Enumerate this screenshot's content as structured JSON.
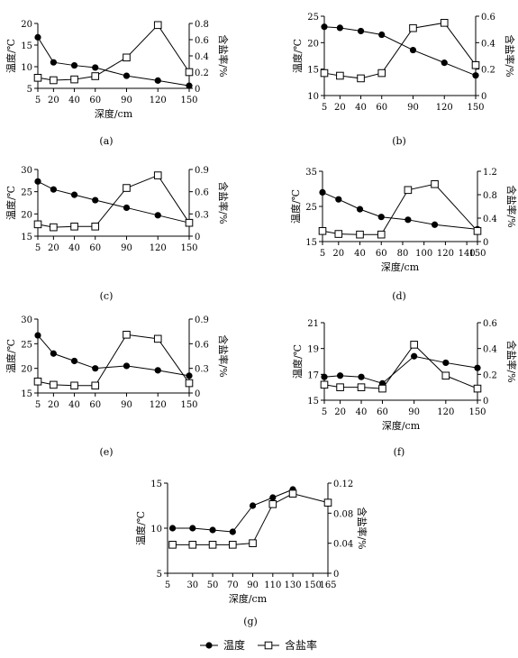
{
  "legend": {
    "temp_label": "温度",
    "salt_label": "含盐率"
  },
  "chart_data": [
    {
      "type": "line",
      "panel_label": "(a)",
      "xlabel": "深度/cm",
      "ylabel_left": "温度/℃",
      "ylabel_right": "含盐率/%",
      "xlim": [
        5,
        150
      ],
      "x_ticks": [
        5,
        20,
        40,
        60,
        90,
        120,
        150
      ],
      "y_left_lim": [
        5,
        20
      ],
      "y_left_ticks": [
        5,
        10,
        15,
        20
      ],
      "y_right_lim": [
        0,
        0.8
      ],
      "y_right_ticks": [
        0,
        0.2,
        0.4,
        0.6,
        0.8
      ],
      "x": [
        5,
        20,
        40,
        60,
        90,
        120,
        150
      ],
      "series": [
        {
          "name": "温度",
          "axis": "left",
          "marker": "filled-circle",
          "values": [
            16.8,
            11.0,
            10.3,
            9.8,
            7.9,
            6.8,
            5.6
          ]
        },
        {
          "name": "含盐率",
          "axis": "right",
          "marker": "open-square",
          "values": [
            0.13,
            0.1,
            0.11,
            0.15,
            0.38,
            0.78,
            0.2
          ]
        }
      ]
    },
    {
      "type": "line",
      "panel_label": "(b)",
      "xlabel": "",
      "ylabel_left": "温度/℃",
      "ylabel_right": "含盐率/%",
      "xlim": [
        5,
        150
      ],
      "x_ticks": [
        5,
        20,
        40,
        60,
        90,
        120,
        150
      ],
      "y_left_lim": [
        10,
        25
      ],
      "y_left_ticks": [
        10,
        15,
        20,
        25
      ],
      "y_right_lim": [
        0,
        0.6
      ],
      "y_right_ticks": [
        0,
        0.2,
        0.4,
        0.6
      ],
      "x": [
        5,
        20,
        40,
        60,
        90,
        120,
        150
      ],
      "series": [
        {
          "name": "温度",
          "axis": "left",
          "marker": "filled-circle",
          "values": [
            23.0,
            22.8,
            22.2,
            21.5,
            18.6,
            16.2,
            13.8
          ]
        },
        {
          "name": "含盐率",
          "axis": "right",
          "marker": "open-square",
          "values": [
            0.17,
            0.15,
            0.13,
            0.17,
            0.51,
            0.55,
            0.23
          ]
        }
      ]
    },
    {
      "type": "line",
      "panel_label": "(c)",
      "xlabel": "",
      "ylabel_left": "温度/℃",
      "ylabel_right": "含盐率/%",
      "xlim": [
        5,
        150
      ],
      "x_ticks": [
        5,
        20,
        40,
        60,
        90,
        120,
        150
      ],
      "y_left_lim": [
        15,
        30
      ],
      "y_left_ticks": [
        15,
        20,
        25,
        30
      ],
      "y_right_lim": [
        0,
        0.9
      ],
      "y_right_ticks": [
        0,
        0.3,
        0.6,
        0.9
      ],
      "x": [
        5,
        20,
        40,
        60,
        90,
        120,
        150
      ],
      "series": [
        {
          "name": "温度",
          "axis": "left",
          "marker": "filled-circle",
          "values": [
            27.3,
            25.5,
            24.3,
            23.1,
            21.4,
            19.7,
            18.0
          ]
        },
        {
          "name": "含盐率",
          "axis": "right",
          "marker": "open-square",
          "values": [
            0.16,
            0.12,
            0.13,
            0.13,
            0.65,
            0.82,
            0.18
          ]
        }
      ]
    },
    {
      "type": "line",
      "panel_label": "(d)",
      "xlabel": "深度/cm",
      "ylabel_left": "温度/℃",
      "ylabel_right": "含盐率/%",
      "xlim": [
        5,
        150
      ],
      "x_ticks": [
        5,
        20,
        40,
        60,
        80,
        100,
        120,
        140,
        150
      ],
      "x_tick_labels": [
        "5",
        "20",
        "40",
        "60",
        "80",
        "100",
        "120",
        "140",
        "150"
      ],
      "y_left_lim": [
        15,
        35
      ],
      "y_left_ticks": [
        15,
        25,
        35
      ],
      "y_right_lim": [
        0,
        1.2
      ],
      "y_right_ticks": [
        0,
        0.4,
        0.8,
        1.2
      ],
      "x": [
        5,
        20,
        40,
        60,
        80,
        100,
        120,
        140
      ],
      "series": [
        {
          "name": "温度",
          "axis": "left",
          "marker": "filled-circle",
          "values": [
            29.0,
            27.0,
            24.2,
            22.0,
            21.0,
            19.8,
            18.5,
            null
          ]
        },
        {
          "name": "含盐率",
          "axis": "right",
          "marker": "open-square",
          "values": [
            null,
            null,
            null,
            null,
            null,
            null,
            null,
            null
          ]
        }
      ]
    },
    {
      "type": "line",
      "panel_label": "(e)",
      "xlabel": "",
      "ylabel_left": "温度/℃",
      "ylabel_right": "含盐率/%",
      "xlim": [
        5,
        150
      ],
      "x_ticks": [
        5,
        20,
        40,
        60,
        90,
        120,
        150
      ],
      "y_left_lim": [
        15,
        30
      ],
      "y_left_ticks": [
        15,
        20,
        25,
        30
      ],
      "y_right_lim": [
        0,
        0.9
      ],
      "y_right_ticks": [
        0,
        0.3,
        0.6,
        0.9
      ],
      "x": [
        5,
        20,
        40,
        60,
        90,
        120,
        150
      ],
      "series": [
        {
          "name": "温度",
          "axis": "left",
          "marker": "filled-circle",
          "values": [
            26.7,
            23.0,
            21.5,
            20.0,
            20.5,
            19.6,
            18.5
          ]
        },
        {
          "name": "含盐率",
          "axis": "right",
          "marker": "open-square",
          "values": [
            0.14,
            0.1,
            0.09,
            0.09,
            0.71,
            0.66,
            0.12
          ]
        }
      ]
    },
    {
      "type": "line",
      "panel_label": "(f)",
      "xlabel": "深度/cm",
      "ylabel_left": "温度/℃",
      "ylabel_right": "含盐率/%",
      "xlim": [
        5,
        150
      ],
      "x_ticks": [
        5,
        20,
        40,
        60,
        90,
        120,
        150
      ],
      "y_left_lim": [
        15,
        21
      ],
      "y_left_ticks": [
        15,
        17,
        19,
        21
      ],
      "y_right_lim": [
        0,
        0.6
      ],
      "y_right_ticks": [
        0,
        0.2,
        0.4,
        0.6
      ],
      "x": [
        5,
        20,
        40,
        60,
        90,
        120,
        150
      ],
      "series": [
        {
          "name": "温度",
          "axis": "left",
          "marker": "filled-circle",
          "values": [
            16.8,
            16.9,
            16.8,
            16.3,
            18.4,
            17.9,
            17.5
          ]
        },
        {
          "name": "含盐率",
          "axis": "right",
          "marker": "open-square",
          "values": [
            0.12,
            0.1,
            0.1,
            0.09,
            0.43,
            0.19,
            0.09
          ]
        }
      ]
    },
    {
      "type": "line",
      "panel_label": "(g)",
      "xlabel": "深度/cm",
      "ylabel_left": "温度/℃",
      "ylabel_right": "含盐率/%",
      "xlim": [
        5,
        165
      ],
      "x_ticks": [
        5,
        30,
        50,
        70,
        90,
        110,
        130,
        150,
        165
      ],
      "x_tick_labels": [
        "5",
        "30",
        "50",
        "70",
        "90",
        "110",
        "130",
        "150",
        "165"
      ],
      "y_left_lim": [
        5,
        15
      ],
      "y_left_ticks": [
        5,
        10,
        15
      ],
      "y_right_lim": [
        0,
        0.12
      ],
      "y_right_ticks": [
        0,
        0.04,
        0.08,
        0.12
      ],
      "x": [
        10,
        30,
        50,
        70,
        90,
        110,
        130,
        165
      ],
      "series": [
        {
          "name": "温度",
          "axis": "left",
          "marker": "filled-circle",
          "values": [
            10.0,
            10.0,
            9.8,
            9.6,
            12.5,
            13.4,
            14.3,
            null
          ]
        },
        {
          "name": "含盐率",
          "axis": "right",
          "marker": "open-square",
          "values": [
            null,
            null,
            null,
            null,
            null,
            null,
            null,
            null
          ]
        }
      ]
    }
  ]
}
